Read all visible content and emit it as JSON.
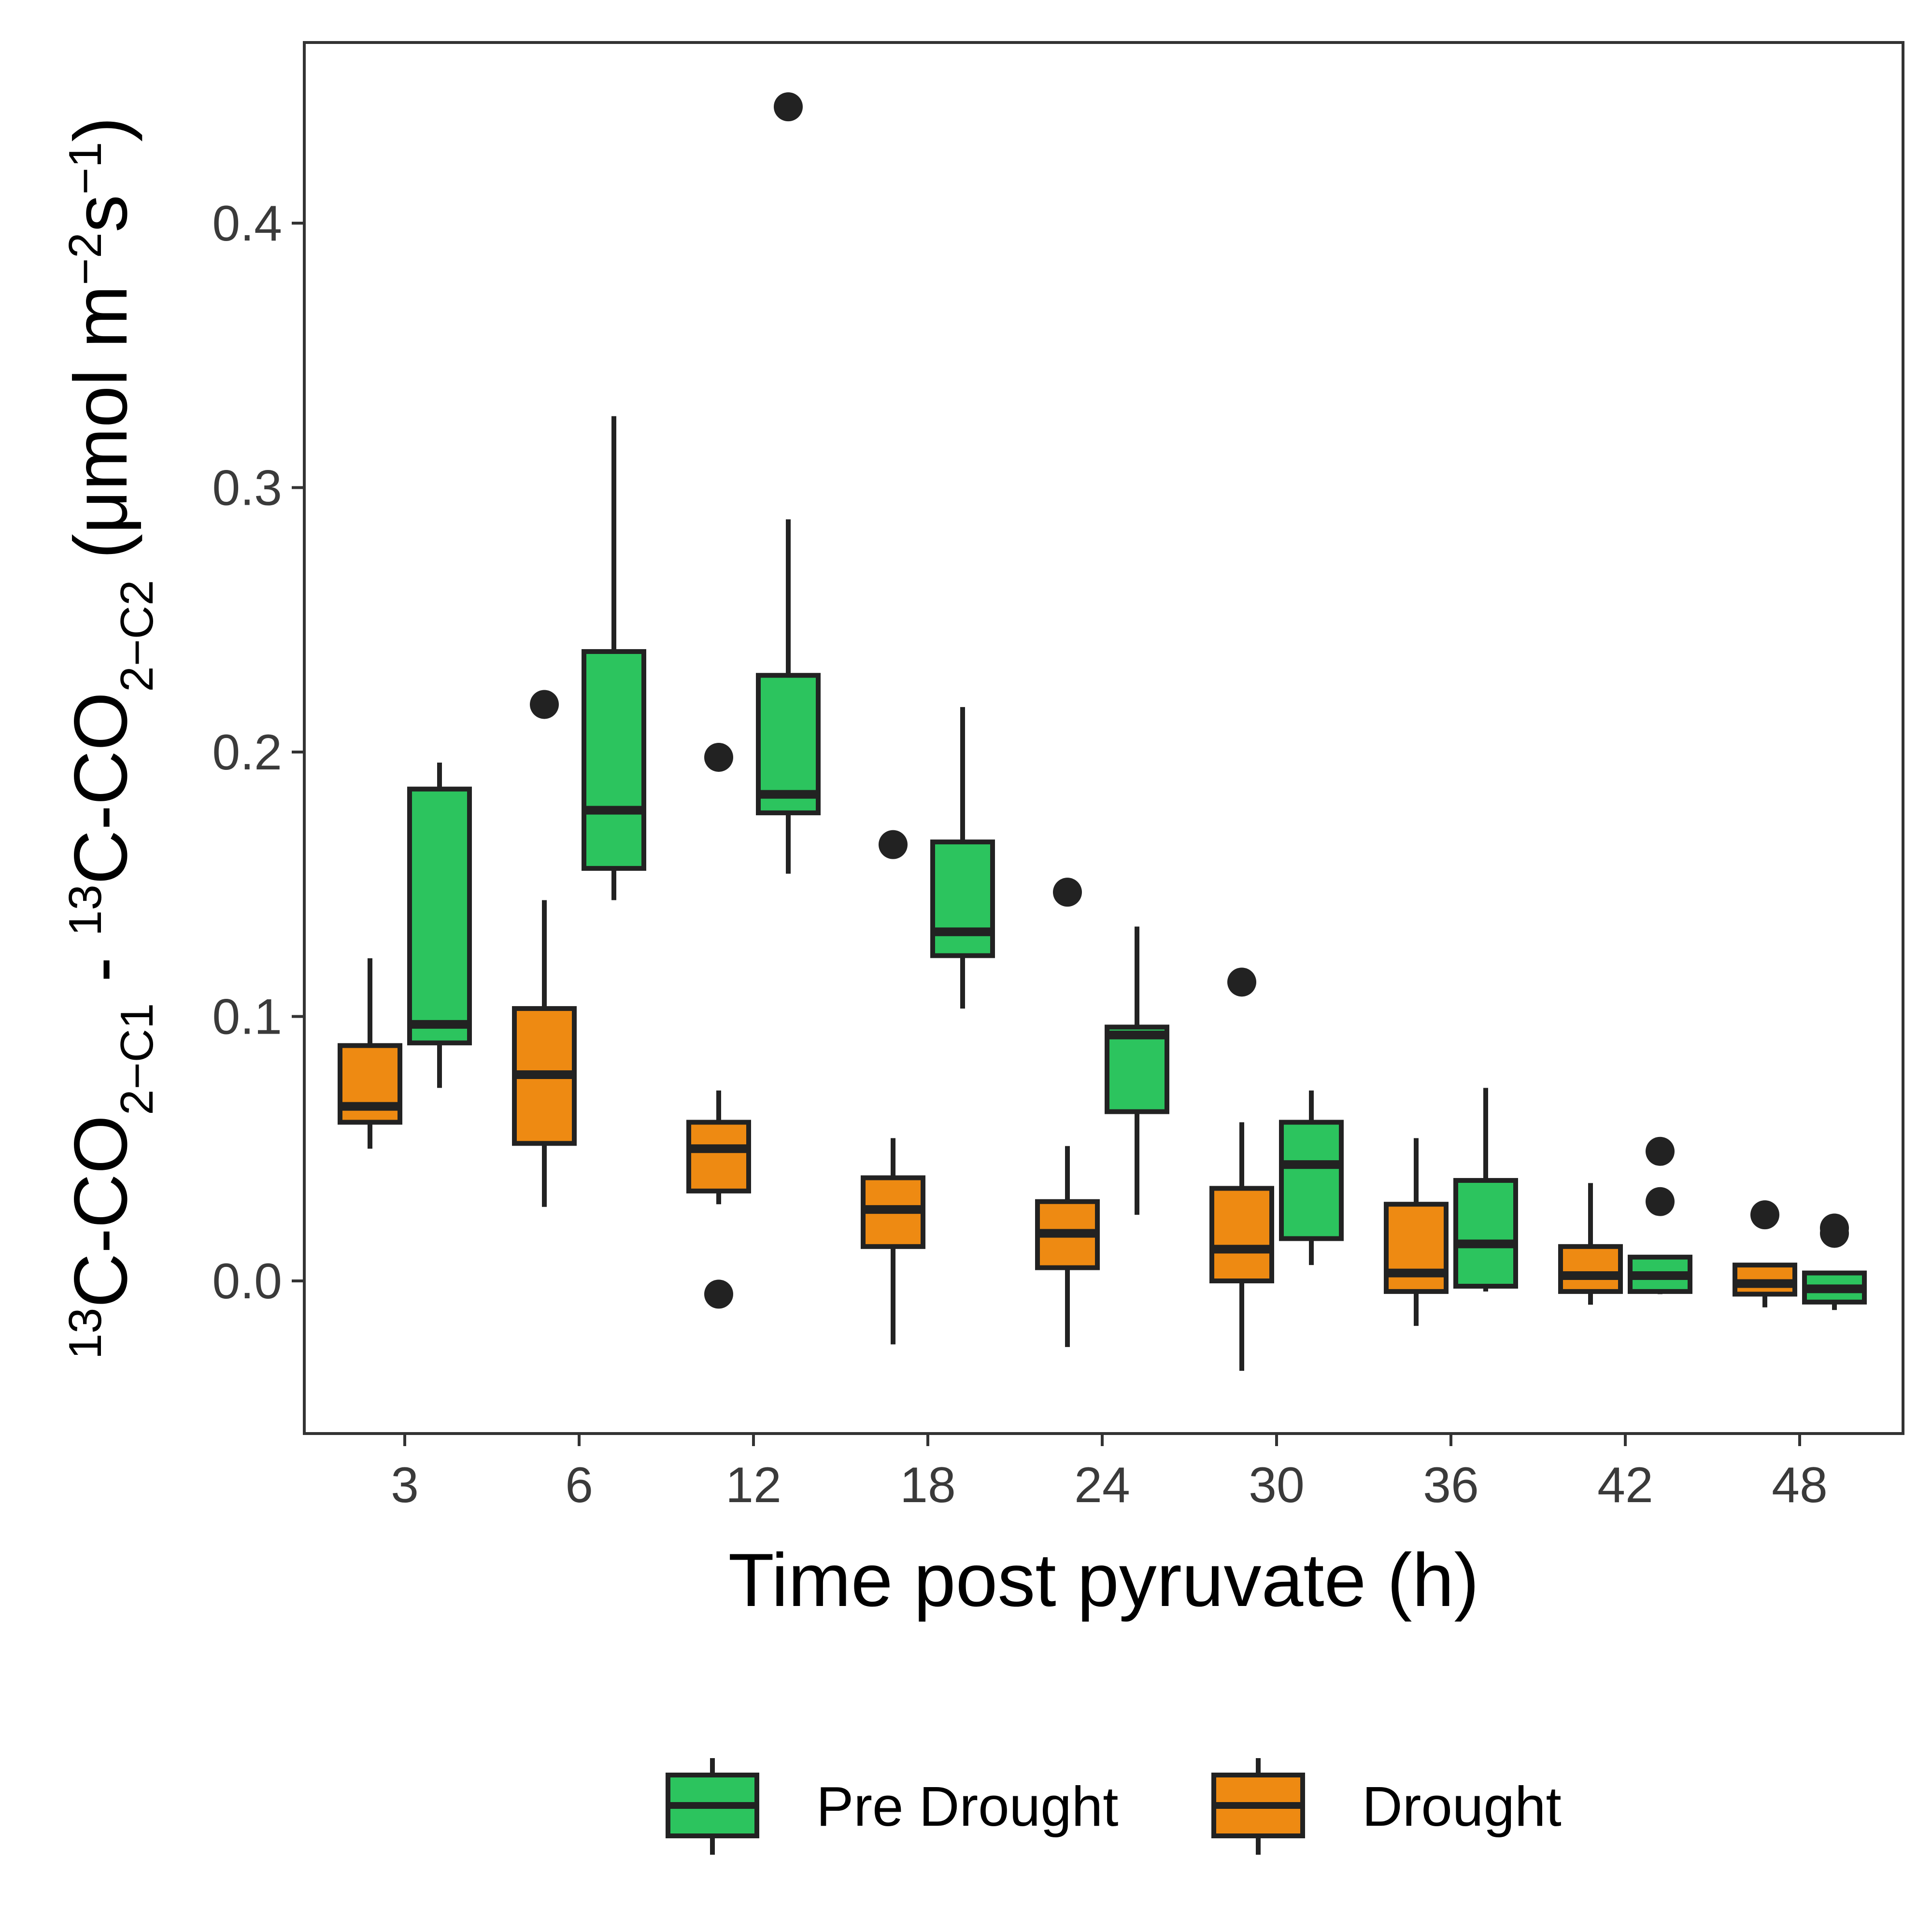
{
  "chart_data": {
    "type": "boxplot",
    "title": "",
    "xlabel": "Time post pyruvate (h)",
    "ylabel": {
      "part1_sup": "13",
      "part1_base": "C-CO",
      "part1_sub": "2−C1",
      "minus": " - ",
      "part2_sup": "13",
      "part2_base": "C-CO",
      "part2_sub": "2−C2",
      "unit_open": " (μmol m",
      "unit_sup1": "−2",
      "unit_s": "s",
      "unit_sup2": "−1",
      "unit_close": ")"
    },
    "categories": [
      "3",
      "6",
      "12",
      "18",
      "24",
      "30",
      "36",
      "42",
      "48"
    ],
    "y_ticks": [
      0.0,
      0.1,
      0.2,
      0.3,
      0.4
    ],
    "y_tick_labels": [
      "0.0",
      "0.1",
      "0.2",
      "0.3",
      "0.4"
    ],
    "ylim": [
      -0.056,
      0.47
    ],
    "grid": false,
    "legend_position": "bottom",
    "series": [
      {
        "name": "Pre Drought",
        "color": "#2cc45e",
        "boxes": [
          {
            "min": 0.073,
            "q1": 0.09,
            "median": 0.097,
            "q3": 0.186,
            "max": 0.196,
            "outliers": []
          },
          {
            "min": 0.144,
            "q1": 0.156,
            "median": 0.178,
            "q3": 0.238,
            "max": 0.327,
            "outliers": []
          },
          {
            "min": 0.154,
            "q1": 0.177,
            "median": 0.184,
            "q3": 0.229,
            "max": 0.288,
            "outliers": [
              0.444
            ]
          },
          {
            "min": 0.103,
            "q1": 0.123,
            "median": 0.132,
            "q3": 0.166,
            "max": 0.217,
            "outliers": []
          },
          {
            "min": 0.025,
            "q1": 0.064,
            "median": 0.093,
            "q3": 0.096,
            "max": 0.134,
            "outliers": []
          },
          {
            "min": 0.006,
            "q1": 0.016,
            "median": 0.044,
            "q3": 0.06,
            "max": 0.072,
            "outliers": []
          },
          {
            "min": -0.004,
            "q1": -0.002,
            "median": 0.014,
            "q3": 0.038,
            "max": 0.073,
            "outliers": []
          },
          {
            "min": -0.005,
            "q1": -0.004,
            "median": 0.002,
            "q3": 0.009,
            "max": 0.009,
            "outliers": [
              0.049,
              0.03
            ]
          },
          {
            "min": -0.011,
            "q1": -0.008,
            "median": -0.003,
            "q3": 0.003,
            "max": 0.003,
            "outliers": [
              0.02,
              0.018
            ]
          }
        ]
      },
      {
        "name": "Drought",
        "color": "#ee8a12",
        "boxes": [
          {
            "min": 0.05,
            "q1": 0.06,
            "median": 0.066,
            "q3": 0.089,
            "max": 0.122,
            "outliers": []
          },
          {
            "min": 0.028,
            "q1": 0.052,
            "median": 0.078,
            "q3": 0.103,
            "max": 0.144,
            "outliers": [
              0.218
            ]
          },
          {
            "min": 0.029,
            "q1": 0.034,
            "median": 0.05,
            "q3": 0.06,
            "max": 0.072,
            "outliers": [
              0.198,
              -0.005
            ]
          },
          {
            "min": -0.024,
            "q1": 0.013,
            "median": 0.027,
            "q3": 0.039,
            "max": 0.054,
            "outliers": [
              0.165
            ]
          },
          {
            "min": -0.025,
            "q1": 0.005,
            "median": 0.018,
            "q3": 0.03,
            "max": 0.051,
            "outliers": [
              0.147
            ]
          },
          {
            "min": -0.034,
            "q1": 0.0,
            "median": 0.012,
            "q3": 0.035,
            "max": 0.06,
            "outliers": [
              0.113
            ]
          },
          {
            "min": -0.017,
            "q1": -0.004,
            "median": 0.003,
            "q3": 0.029,
            "max": 0.054,
            "outliers": []
          },
          {
            "min": -0.009,
            "q1": -0.004,
            "median": 0.002,
            "q3": 0.013,
            "max": 0.037,
            "outliers": []
          },
          {
            "min": -0.01,
            "q1": -0.005,
            "median": -0.001,
            "q3": 0.006,
            "max": 0.006,
            "outliers": [
              0.025
            ]
          }
        ]
      }
    ]
  }
}
